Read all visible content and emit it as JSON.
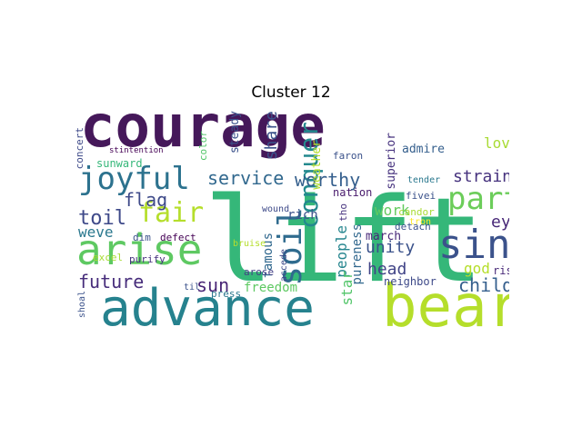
{
  "title": "Cluster 12",
  "cloud": {
    "words": [
      {
        "text": "courage",
        "color": "#45185a"
      },
      {
        "text": "lift",
        "color": "#35b779"
      },
      {
        "text": "advance",
        "color": "#26828e"
      },
      {
        "text": "bear",
        "color": "#b5de2b"
      },
      {
        "text": "arise",
        "color": "#5ec962"
      },
      {
        "text": "sing",
        "color": "#3b528b"
      },
      {
        "text": "joyful",
        "color": "#2c728e"
      },
      {
        "text": "part",
        "color": "#6ccd5a"
      },
      {
        "text": "conquer",
        "color": "#23898e"
      },
      {
        "text": "soil",
        "color": "#2f6b8e"
      },
      {
        "text": "fair",
        "color": "#b5de2b"
      },
      {
        "text": "toil",
        "color": "#3e4989"
      },
      {
        "text": "future",
        "color": "#472d7b"
      },
      {
        "text": "service",
        "color": "#31688e"
      },
      {
        "text": "worthy",
        "color": "#355f8d"
      },
      {
        "text": "flag",
        "color": "#3e4a89"
      },
      {
        "text": "sun",
        "color": "#482475"
      },
      {
        "text": "child",
        "color": "#355f8d"
      },
      {
        "text": "strain",
        "color": "#46327e"
      },
      {
        "text": "eye",
        "color": "#482878"
      },
      {
        "text": "head",
        "color": "#414487"
      },
      {
        "text": "unity",
        "color": "#3b528b"
      },
      {
        "text": "weve",
        "color": "#2a788e"
      },
      {
        "text": "share",
        "color": "#3b528b"
      },
      {
        "text": "work",
        "color": "#63cb5f"
      },
      {
        "text": "love",
        "color": "#a8db34"
      },
      {
        "text": "freedom",
        "color": "#5ec962"
      },
      {
        "text": "god",
        "color": "#b5de2b"
      },
      {
        "text": "march",
        "color": "#482878"
      },
      {
        "text": "people",
        "color": "#25858e"
      },
      {
        "text": "pureness",
        "color": "#31688e"
      },
      {
        "text": "famous",
        "color": "#31688e"
      },
      {
        "text": "star",
        "color": "#52c569"
      },
      {
        "text": "rich",
        "color": "#3b528b"
      },
      {
        "text": "neighbor",
        "color": "#3e4a89"
      },
      {
        "text": "rise",
        "color": "#482878"
      },
      {
        "text": "sunward",
        "color": "#35b779"
      },
      {
        "text": "steady",
        "color": "#3b528b"
      },
      {
        "text": "nation",
        "color": "#481a6c"
      },
      {
        "text": "superior",
        "color": "#46327e"
      },
      {
        "text": "admire",
        "color": "#355f8d"
      },
      {
        "text": "weather",
        "color": "#b5de2b"
      },
      {
        "text": "concert",
        "color": "#3e4a89"
      },
      {
        "text": "dim",
        "color": "#3b528b"
      },
      {
        "text": "defect",
        "color": "#440154"
      },
      {
        "text": "purify",
        "color": "#46327e"
      },
      {
        "text": "excel",
        "color": "#a8db34"
      },
      {
        "text": "shoal",
        "color": "#3b528b"
      },
      {
        "text": "press",
        "color": "#2a788e"
      },
      {
        "text": "arose",
        "color": "#433e85"
      },
      {
        "text": "accede",
        "color": "#3e4a89"
      },
      {
        "text": "detach",
        "color": "#3b528b"
      },
      {
        "text": "faron",
        "color": "#3b528b"
      },
      {
        "text": "candor",
        "color": "#a8db34"
      },
      {
        "text": "tender",
        "color": "#2a788e"
      },
      {
        "text": "fivei",
        "color": "#3b528b"
      },
      {
        "text": "tron",
        "color": "#fde725"
      },
      {
        "text": "bruise",
        "color": "#b5de2b"
      },
      {
        "text": "wound",
        "color": "#3e4a89"
      },
      {
        "text": "color",
        "color": "#52c569"
      },
      {
        "text": "til",
        "color": "#3b528b"
      },
      {
        "text": "tho",
        "color": "#46327e"
      },
      {
        "text": "stintention",
        "color": "#440154"
      }
    ]
  }
}
